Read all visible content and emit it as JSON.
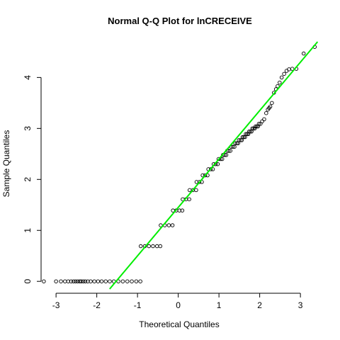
{
  "chart_data": {
    "type": "scatter",
    "title": "Normal Q-Q Plot for lnCRECEIVE",
    "xlabel": "Theoretical Quantiles",
    "ylabel": "Sample Quantiles",
    "xlim": [
      -3.35,
      3.45
    ],
    "ylim": [
      -0.15,
      4.7
    ],
    "x_ticks": [
      -3,
      -2,
      -1,
      0,
      1,
      2,
      3
    ],
    "y_ticks": [
      0,
      1,
      2,
      3,
      4
    ],
    "grid": false,
    "marker": "open-circle",
    "colors": {
      "points": "#000000",
      "reference_line": "#00ee00"
    },
    "reference_line": {
      "intercept": 1.45,
      "slope": 0.95
    },
    "points": [
      [
        -3.3,
        0.0
      ],
      [
        -3.0,
        0.0
      ],
      [
        -2.88,
        0.0
      ],
      [
        -2.78,
        0.0
      ],
      [
        -2.7,
        0.0
      ],
      [
        -2.63,
        0.0
      ],
      [
        -2.57,
        0.0
      ],
      [
        -2.52,
        0.0
      ],
      [
        -2.47,
        0.0
      ],
      [
        -2.42,
        0.0
      ],
      [
        -2.38,
        0.0
      ],
      [
        -2.33,
        0.0
      ],
      [
        -2.28,
        0.0
      ],
      [
        -2.22,
        0.0
      ],
      [
        -2.15,
        0.0
      ],
      [
        -2.06,
        0.0
      ],
      [
        -1.97,
        0.0
      ],
      [
        -1.88,
        0.0
      ],
      [
        -1.78,
        0.0
      ],
      [
        -1.68,
        0.0
      ],
      [
        -1.58,
        0.0
      ],
      [
        -1.47,
        0.0
      ],
      [
        -1.36,
        0.0
      ],
      [
        -1.25,
        0.0
      ],
      [
        -1.14,
        0.0
      ],
      [
        -1.03,
        0.0
      ],
      [
        -0.93,
        0.0
      ],
      [
        -0.92,
        0.69
      ],
      [
        -0.82,
        0.69
      ],
      [
        -0.72,
        0.69
      ],
      [
        -0.62,
        0.69
      ],
      [
        -0.52,
        0.69
      ],
      [
        -0.44,
        0.69
      ],
      [
        -0.43,
        1.1
      ],
      [
        -0.33,
        1.1
      ],
      [
        -0.23,
        1.1
      ],
      [
        -0.14,
        1.1
      ],
      [
        -0.13,
        1.39
      ],
      [
        -0.05,
        1.39
      ],
      [
        0.03,
        1.39
      ],
      [
        0.1,
        1.39
      ],
      [
        0.11,
        1.61
      ],
      [
        0.19,
        1.61
      ],
      [
        0.27,
        1.61
      ],
      [
        0.28,
        1.79
      ],
      [
        0.36,
        1.79
      ],
      [
        0.44,
        1.79
      ],
      [
        0.45,
        1.95
      ],
      [
        0.52,
        1.95
      ],
      [
        0.58,
        1.95
      ],
      [
        0.6,
        2.08
      ],
      [
        0.66,
        2.08
      ],
      [
        0.72,
        2.08
      ],
      [
        0.74,
        2.2
      ],
      [
        0.8,
        2.2
      ],
      [
        0.85,
        2.2
      ],
      [
        0.87,
        2.3
      ],
      [
        0.92,
        2.3
      ],
      [
        0.97,
        2.3
      ],
      [
        0.99,
        2.4
      ],
      [
        1.04,
        2.4
      ],
      [
        1.08,
        2.4
      ],
      [
        1.1,
        2.48
      ],
      [
        1.14,
        2.48
      ],
      [
        1.18,
        2.48
      ],
      [
        1.2,
        2.56
      ],
      [
        1.24,
        2.56
      ],
      [
        1.28,
        2.56
      ],
      [
        1.3,
        2.64
      ],
      [
        1.34,
        2.64
      ],
      [
        1.38,
        2.64
      ],
      [
        1.4,
        2.71
      ],
      [
        1.44,
        2.71
      ],
      [
        1.47,
        2.71
      ],
      [
        1.49,
        2.77
      ],
      [
        1.53,
        2.77
      ],
      [
        1.56,
        2.77
      ],
      [
        1.58,
        2.83
      ],
      [
        1.61,
        2.83
      ],
      [
        1.64,
        2.83
      ],
      [
        1.66,
        2.89
      ],
      [
        1.69,
        2.89
      ],
      [
        1.72,
        2.89
      ],
      [
        1.74,
        2.94
      ],
      [
        1.77,
        2.94
      ],
      [
        1.8,
        2.94
      ],
      [
        1.82,
        3.0
      ],
      [
        1.85,
        3.0
      ],
      [
        1.88,
        3.0
      ],
      [
        1.9,
        3.04
      ],
      [
        1.93,
        3.04
      ],
      [
        1.96,
        3.04
      ],
      [
        1.98,
        3.09
      ],
      [
        2.02,
        3.09
      ],
      [
        2.06,
        3.14
      ],
      [
        2.11,
        3.18
      ],
      [
        2.16,
        3.3
      ],
      [
        2.2,
        3.37
      ],
      [
        2.23,
        3.4
      ],
      [
        2.26,
        3.43
      ],
      [
        2.3,
        3.5
      ],
      [
        2.35,
        3.7
      ],
      [
        2.4,
        3.77
      ],
      [
        2.44,
        3.83
      ],
      [
        2.49,
        3.9
      ],
      [
        2.54,
        4.0
      ],
      [
        2.6,
        4.07
      ],
      [
        2.66,
        4.13
      ],
      [
        2.72,
        4.16
      ],
      [
        2.8,
        4.17
      ],
      [
        2.9,
        4.17
      ],
      [
        3.08,
        4.47
      ],
      [
        3.35,
        4.6
      ]
    ]
  }
}
